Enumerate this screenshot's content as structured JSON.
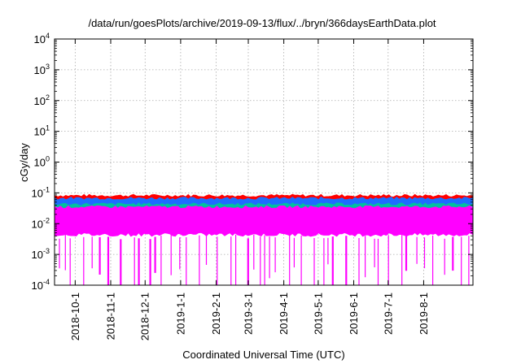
{
  "chart_data": {
    "type": "area",
    "title": "/data/run/goesPlots/archive/2019-09-13/flux/../bryn/366daysEarthData.plot",
    "xlabel": "Coordinated Universal Time (UTC)",
    "ylabel": "cGy/day",
    "yscale": "log",
    "ylim": [
      0.0001,
      10000
    ],
    "xlim": [
      "2018-09-13",
      "2019-09-13"
    ],
    "grid": true,
    "x_ticks": [
      "2018-10-1",
      "2018-11-1",
      "2018-12-1",
      "2019-1-1",
      "2019-2-1",
      "2019-3-1",
      "2019-4-1",
      "2019-5-1",
      "2019-6-1",
      "2019-7-1",
      "2019-8-1"
    ],
    "y_ticks": [
      {
        "value": 0.0001,
        "base": "10",
        "exp": "-4"
      },
      {
        "value": 0.001,
        "base": "10",
        "exp": "-3"
      },
      {
        "value": 0.01,
        "base": "10",
        "exp": "-2"
      },
      {
        "value": 0.1,
        "base": "10",
        "exp": "-1"
      },
      {
        "value": 1,
        "base": "10",
        "exp": "0"
      },
      {
        "value": 10,
        "base": "10",
        "exp": "1"
      },
      {
        "value": 100,
        "base": "10",
        "exp": "2"
      },
      {
        "value": 1000,
        "base": "10",
        "exp": "3"
      },
      {
        "value": 10000,
        "base": "10",
        "exp": "4"
      }
    ],
    "series": [
      {
        "color": "#ff0000",
        "upper": 0.08,
        "lower": 0.045
      },
      {
        "color": "#1e6cff",
        "upper": 0.065,
        "lower": 0.025
      },
      {
        "color": "#00c0a0",
        "upper": 0.042,
        "lower": 0.02
      },
      {
        "color": "#ff00ff",
        "upper": 0.034,
        "lower": 0.0045,
        "dropouts_to": 0.0001
      }
    ]
  }
}
